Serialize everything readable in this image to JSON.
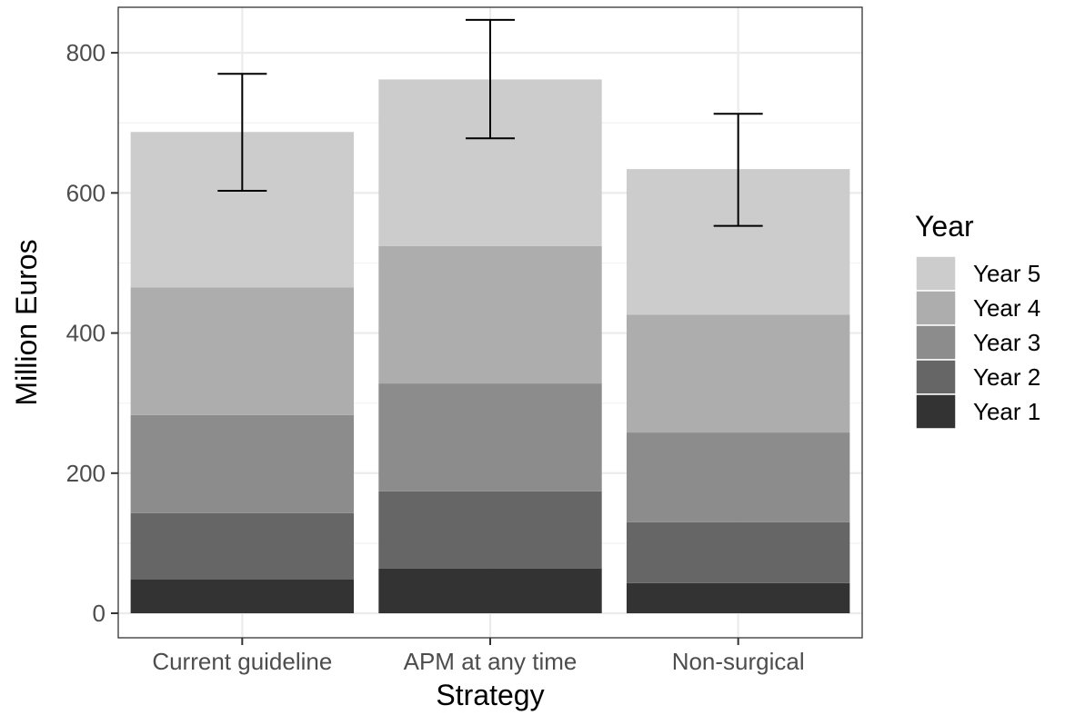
{
  "chart_data": {
    "type": "bar",
    "stacked": true,
    "xlabel": "Strategy",
    "ylabel": "Million Euros",
    "ylim": [
      -35,
      865
    ],
    "yticks": [
      0,
      200,
      400,
      600,
      800
    ],
    "grid": true,
    "categories": [
      "Current guideline",
      "APM at any time",
      "Non-surgical"
    ],
    "series": [
      {
        "name": "Year 1",
        "color": "#333333",
        "values": [
          48,
          64,
          43
        ]
      },
      {
        "name": "Year 2",
        "color": "#666666",
        "values": [
          95,
          110,
          87
        ]
      },
      {
        "name": "Year 3",
        "color": "#8c8c8c",
        "values": [
          140,
          154,
          128
        ]
      },
      {
        "name": "Year 4",
        "color": "#adadad",
        "values": [
          182,
          196,
          168
        ]
      },
      {
        "name": "Year 5",
        "color": "#cccccc",
        "values": [
          222,
          238,
          208
        ]
      }
    ],
    "error_bars": [
      {
        "low": 603,
        "high": 770
      },
      {
        "low": 678,
        "high": 847
      },
      {
        "low": 553,
        "high": 713
      }
    ],
    "legend": {
      "title": "Year",
      "position": "right",
      "order": [
        "Year 5",
        "Year 4",
        "Year 3",
        "Year 2",
        "Year 1"
      ]
    }
  }
}
